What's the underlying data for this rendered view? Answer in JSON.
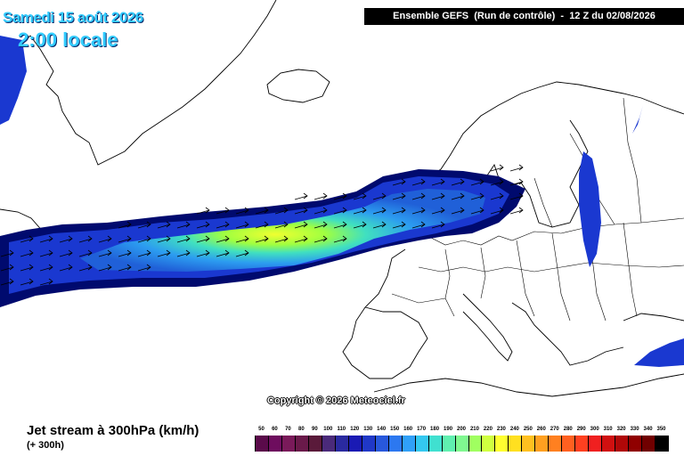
{
  "header": {
    "date": "Samedi 15 août 2026",
    "time": "2:00 locale",
    "run": "Ensemble GEFS  (Run de contrôle)  -  12 Z du 02/08/2026"
  },
  "map": {
    "copyright": "Copyright © 2026 Meteociel.fr"
  },
  "legend": {
    "title": "Jet stream à 300hPa (km/h)",
    "lead": "(+ 300h)",
    "values": [
      "50",
      "60",
      "70",
      "80",
      "90",
      "100",
      "110",
      "120",
      "130",
      "140",
      "150",
      "160",
      "170",
      "180",
      "190",
      "200",
      "210",
      "220",
      "230",
      "240",
      "250",
      "260",
      "270",
      "280",
      "290",
      "300",
      "310",
      "320",
      "330",
      "340",
      "350"
    ],
    "colors": [
      "#5a0a4a",
      "#6e0d5e",
      "#7a1a5a",
      "#6a1a4a",
      "#5a1a3a",
      "#4a2a7a",
      "#2a2aa0",
      "#1a1ab4",
      "#2038c8",
      "#2858dc",
      "#2c78f0",
      "#30a0f8",
      "#34c8f0",
      "#40e0d0",
      "#60f0b0",
      "#80f890",
      "#a0ff60",
      "#d0ff40",
      "#ffff30",
      "#ffe020",
      "#ffc020",
      "#ffa020",
      "#ff8020",
      "#ff6020",
      "#ff4020",
      "#f02020",
      "#d01010",
      "#b00808",
      "#900000",
      "#700000",
      "#000000"
    ]
  }
}
